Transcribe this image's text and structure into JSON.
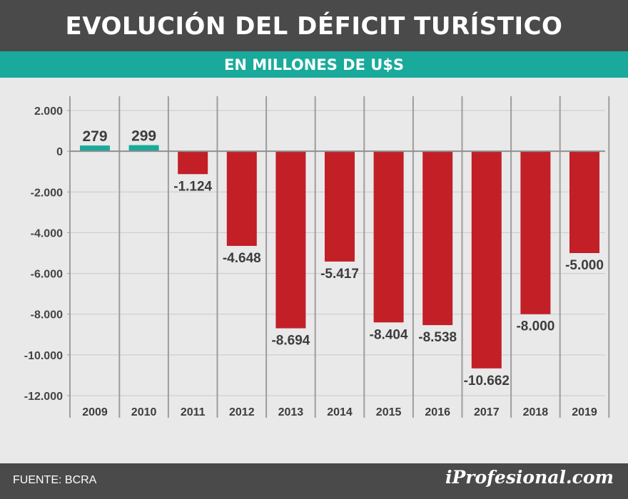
{
  "header": {
    "title": "EVOLUCIÓN DEL DÉFICIT TURÍSTICO",
    "subtitle": "EN MILLONES DE U$S"
  },
  "footer": {
    "source": "FUENTE: BCRA",
    "brand": "iProfesional.com"
  },
  "colors": {
    "positive_bar": "#1aaa9b",
    "negative_bar": "#c21f27",
    "header_band": "#4a4a4b",
    "subheader_band": "#1aaa9b"
  },
  "chart_data": {
    "type": "bar",
    "title": "EVOLUCIÓN DEL DÉFICIT TURÍSTICO",
    "subtitle": "EN MILLONES DE U$S",
    "xlabel": "",
    "ylabel": "",
    "categories": [
      "2009",
      "2010",
      "2011",
      "2012",
      "2013",
      "2014",
      "2015",
      "2016",
      "2017",
      "2018",
      "2019"
    ],
    "values": [
      279,
      299,
      -1124,
      -4648,
      -8694,
      -5417,
      -8404,
      -8538,
      -10662,
      -8000,
      -5000
    ],
    "value_labels": [
      "279",
      "299",
      "-1.124",
      "-4.648",
      "-8.694",
      "-5.417",
      "-8.404",
      "-8.538",
      "-10.662",
      "-8.000",
      "-5.000"
    ],
    "ylim": [
      -12000,
      2000
    ],
    "yticks": [
      2000,
      0,
      -2000,
      -4000,
      -6000,
      -8000,
      -10000,
      -12000
    ],
    "ytick_labels": [
      "2.000",
      "0",
      "-2.000",
      "-4.000",
      "-6.000",
      "-8.000",
      "-10.000",
      "-12.000"
    ],
    "grid": true,
    "legend": "none"
  }
}
